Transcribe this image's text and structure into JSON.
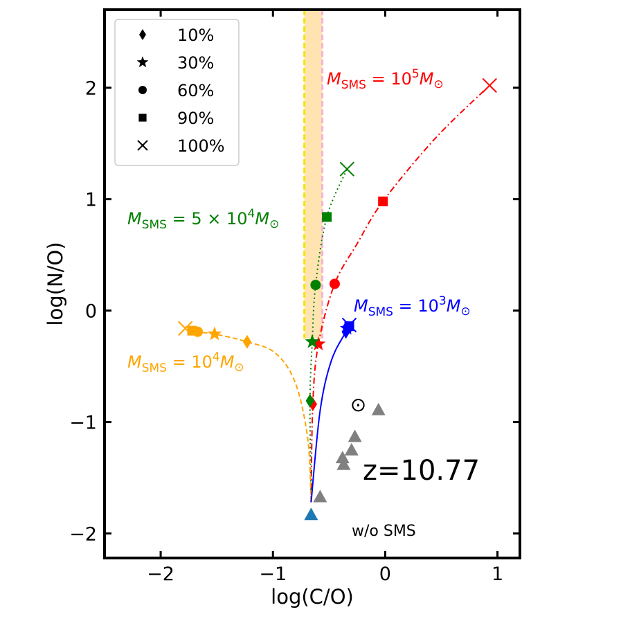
{
  "chart_data": {
    "type": "line",
    "title": "",
    "xlabel": "log(C/O)",
    "ylabel": "log(N/O)",
    "xlim": [
      -2.5,
      1.2
    ],
    "ylim": [
      -2.22,
      2.7
    ],
    "xticks": [
      -2,
      -1,
      0,
      1
    ],
    "xtick_labels": [
      "−2",
      "−1",
      "0",
      "1"
    ],
    "yticks": [
      -2,
      -1,
      0,
      1,
      2
    ],
    "ytick_labels": [
      "−2",
      "−1",
      "0",
      "1",
      "2"
    ],
    "grid": false,
    "legend_position": "top-left",
    "legend": [
      {
        "marker": "diamond",
        "label": "10%"
      },
      {
        "marker": "star",
        "label": "30%"
      },
      {
        "marker": "circle",
        "label": "60%"
      },
      {
        "marker": "square",
        "label": "90%"
      },
      {
        "marker": "x",
        "label": "100%"
      }
    ],
    "band": {
      "x_range": [
        -0.72,
        -0.56
      ],
      "y_range": [
        -0.25,
        2.7
      ],
      "color": "#ffd27f",
      "edge_colors": [
        "#f5e400",
        "#f5b3d6"
      ]
    },
    "start_point": {
      "x": -0.66,
      "y": -1.83,
      "marker": "triangle",
      "color": "#1f77b4"
    },
    "series": [
      {
        "label_main": "M",
        "label_sub": "SMS",
        "label_eq": " = 10",
        "label_sup": "5",
        "label_end": "M",
        "label_sun": "⊙",
        "color": "#ff0000",
        "dash": "dashdot",
        "curve": [
          [
            -0.66,
            -1.72
          ],
          [
            -0.645,
            -0.84
          ],
          [
            -0.595,
            -0.3
          ],
          [
            -0.45,
            0.24
          ],
          [
            -0.25,
            0.6
          ],
          [
            -0.02,
            0.98
          ],
          [
            0.45,
            1.55
          ],
          [
            0.93,
            2.02
          ]
        ],
        "markers": [
          {
            "x": -0.645,
            "y": -0.84,
            "marker": "diamond"
          },
          {
            "x": -0.595,
            "y": -0.3,
            "marker": "star"
          },
          {
            "x": -0.45,
            "y": 0.24,
            "marker": "circle"
          },
          {
            "x": -0.02,
            "y": 0.98,
            "marker": "square"
          },
          {
            "x": 0.93,
            "y": 2.02,
            "marker": "x"
          }
        ]
      },
      {
        "label_main": "M",
        "label_sub": "SMS",
        "label_eq": " = 5 × 10",
        "label_sup": "4",
        "label_end": "M",
        "label_sun": "⊙",
        "color": "#008000",
        "dash": "dotted",
        "curve": [
          [
            -0.66,
            -1.72
          ],
          [
            -0.67,
            -0.81
          ],
          [
            -0.65,
            -0.28
          ],
          [
            -0.62,
            0.23
          ],
          [
            -0.52,
            0.84
          ],
          [
            -0.34,
            1.27
          ]
        ],
        "markers": [
          {
            "x": -0.67,
            "y": -0.81,
            "marker": "diamond"
          },
          {
            "x": -0.65,
            "y": -0.28,
            "marker": "star"
          },
          {
            "x": -0.62,
            "y": 0.23,
            "marker": "circle"
          },
          {
            "x": -0.52,
            "y": 0.84,
            "marker": "square"
          },
          {
            "x": -0.34,
            "y": 1.27,
            "marker": "x"
          }
        ]
      },
      {
        "label_main": "M",
        "label_sub": "SMS",
        "label_eq": " = 10",
        "label_sup": "4",
        "label_end": "M",
        "label_sun": "⊙",
        "color": "#ffa500",
        "dash": "dashed",
        "curve": [
          [
            -0.66,
            -1.72
          ],
          [
            -0.69,
            -1.15
          ],
          [
            -0.8,
            -0.65
          ],
          [
            -0.98,
            -0.38
          ],
          [
            -1.23,
            -0.28
          ],
          [
            -1.52,
            -0.21
          ],
          [
            -1.67,
            -0.19
          ],
          [
            -1.78,
            -0.14
          ]
        ],
        "markers": [
          {
            "x": -1.23,
            "y": -0.28,
            "marker": "diamond"
          },
          {
            "x": -1.52,
            "y": -0.21,
            "marker": "star"
          },
          {
            "x": -1.67,
            "y": -0.19,
            "marker": "circle"
          },
          {
            "x": -1.72,
            "y": -0.18,
            "marker": "square"
          },
          {
            "x": -1.78,
            "y": -0.16,
            "marker": "x"
          }
        ]
      },
      {
        "label_main": "M",
        "label_sub": "SMS",
        "label_eq": " = 10",
        "label_sup": "3",
        "label_end": "M",
        "label_sun": "⊙",
        "color": "#0000ff",
        "dash": "solid",
        "curve": [
          [
            -0.66,
            -1.72
          ],
          [
            -0.58,
            -0.9
          ],
          [
            -0.48,
            -0.45
          ],
          [
            -0.35,
            -0.19
          ],
          [
            -0.32,
            -0.13
          ]
        ],
        "markers": [
          {
            "x": -0.35,
            "y": -0.19,
            "marker": "diamond"
          },
          {
            "x": -0.34,
            "y": -0.16,
            "marker": "star"
          },
          {
            "x": -0.33,
            "y": -0.15,
            "marker": "circle"
          },
          {
            "x": -0.32,
            "y": -0.14,
            "marker": "square"
          },
          {
            "x": -0.32,
            "y": -0.13,
            "marker": "x"
          }
        ]
      }
    ],
    "observed_points": {
      "marker": "triangle",
      "color": "#808080",
      "points": [
        [
          -0.06,
          -0.89
        ],
        [
          -0.27,
          -1.13
        ],
        [
          -0.3,
          -1.25
        ],
        [
          -0.38,
          -1.32
        ],
        [
          -0.37,
          -1.38
        ],
        [
          -0.58,
          -1.67
        ]
      ]
    },
    "sun": {
      "x": -0.24,
      "y": -0.84,
      "symbol": "⊙"
    },
    "annotations": {
      "redshift": "z=10.77",
      "no_sms": "w/o SMS"
    }
  }
}
